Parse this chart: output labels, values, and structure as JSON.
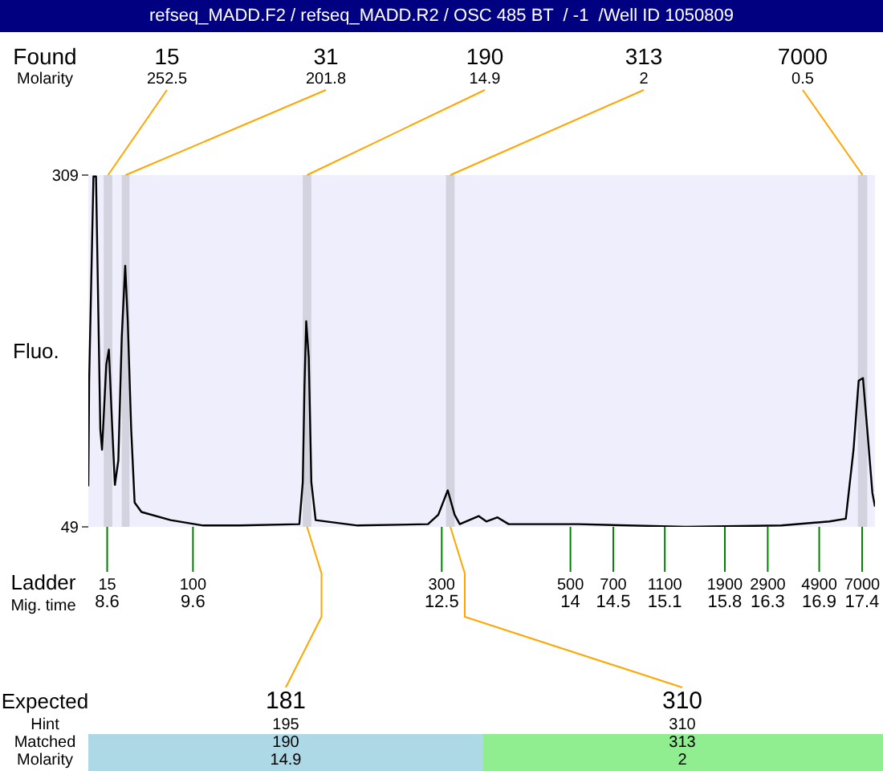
{
  "chart_data": {
    "type": "line",
    "title": "refseq_MADD.F2 / refseq_MADD.R2 / OSC 485 BT  / -1  /Well ID 1050809",
    "xlabel": "Mig. time",
    "ylabel": "Fluo.",
    "x": [
      8.38,
      8.39,
      8.44,
      8.47,
      8.52,
      8.54,
      8.59,
      8.62,
      8.66,
      8.69,
      8.73,
      8.77,
      8.81,
      8.84,
      8.88,
      8.92,
      9.0,
      9.34,
      9.72,
      10.15,
      10.84,
      10.88,
      10.9,
      10.92,
      10.95,
      10.98,
      11.03,
      11.52,
      12.34,
      12.46,
      12.57,
      12.65,
      12.71,
      12.93,
      13.02,
      13.15,
      13.28,
      14.09,
      15.34,
      16.46,
      17.02,
      17.21,
      17.3,
      17.36,
      17.41,
      17.46,
      17.52,
      17.55
    ],
    "series": [
      {
        "color": "#000000",
        "values": [
          79,
          157,
          308,
          308,
          121,
          106,
          169,
          180,
          121,
          80,
          98,
          189,
          242,
          201,
          121,
          67,
          60,
          54,
          50,
          50,
          51,
          82,
          153,
          201,
          174,
          82,
          54,
          50,
          51,
          58,
          76,
          58,
          51,
          57,
          53,
          56,
          51,
          51,
          49,
          50,
          53,
          55,
          106,
          157,
          159,
          121,
          74,
          64
        ]
      }
    ],
    "xlim": [
      8.38,
      17.55
    ],
    "xticks": [
      8.6,
      9.6,
      12.5,
      14,
      14.5,
      15.1,
      15.8,
      16.3,
      16.9,
      17.4
    ],
    "ylim": [
      49,
      309
    ],
    "yticks": [
      49,
      309
    ],
    "bands": [
      {
        "axis": "x",
        "from": 8.56,
        "to": 8.66,
        "label": "15",
        "color": "#d3d3e0"
      },
      {
        "axis": "x",
        "from": 8.77,
        "to": 8.86,
        "label": "31",
        "color": "#d3d3e0"
      },
      {
        "axis": "x",
        "from": 10.88,
        "to": 10.98,
        "label": "190",
        "color": "#d3d3e0"
      },
      {
        "axis": "x",
        "from": 12.55,
        "to": 12.65,
        "label": "313",
        "color": "#d3d3e0"
      },
      {
        "axis": "x",
        "from": 17.35,
        "to": 17.46,
        "label": "7000",
        "color": "#d3d3e0"
      }
    ],
    "annotations": [
      "Found",
      "Molarity",
      {
        "text": "252.5",
        "x": 8.61,
        "y": 309
      },
      {
        "text": "201.8",
        "x": 8.815,
        "y": 309
      },
      {
        "text": "14.9",
        "x": 10.93,
        "y": 309
      },
      {
        "text": "2",
        "x": 12.6,
        "y": 309
      },
      {
        "text": "0.5",
        "x": 17.405,
        "y": 309
      },
      "Ladder",
      "15",
      "100",
      "300",
      "500",
      "700",
      "1100",
      "1900",
      "2900",
      "4900",
      "7000",
      "Expected",
      "Hint",
      "Matched",
      "Molarity",
      {
        "text": "181",
        "x": 10.93,
        "y": 49
      },
      "195",
      "190",
      "14.9",
      {
        "text": "310",
        "x": 12.6,
        "y": 49
      },
      "310",
      "313",
      "2"
    ]
  }
}
